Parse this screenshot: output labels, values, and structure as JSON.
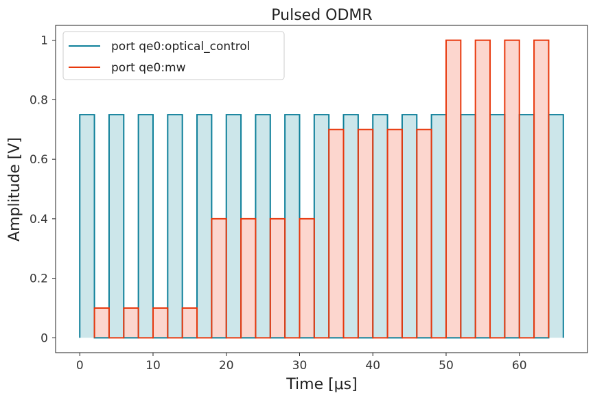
{
  "chart_data": {
    "type": "line",
    "title": "Pulsed ODMR",
    "xlabel": "Time [μs]",
    "ylabel": "Amplitude [V]",
    "xlim": [
      -3.3,
      69.3
    ],
    "ylim": [
      -0.05,
      1.05
    ],
    "xticks": [
      0,
      10,
      20,
      30,
      40,
      50,
      60
    ],
    "xtick_labels": [
      "0",
      "10",
      "20",
      "30",
      "40",
      "50",
      "60"
    ],
    "yticks": [
      0,
      0.2,
      0.4,
      0.6,
      0.8,
      1
    ],
    "ytick_labels": [
      "0",
      "0.2",
      "0.4",
      "0.6",
      "0.8",
      "1"
    ],
    "grid": false,
    "legend_position": "top-left",
    "series": [
      {
        "name": "port qe0:optical_control",
        "color": "#0d7f99",
        "fill": "#cce6ea",
        "pulses": [
          {
            "start": 0,
            "end": 2,
            "amp": 0.75
          },
          {
            "start": 4,
            "end": 6,
            "amp": 0.75
          },
          {
            "start": 8,
            "end": 10,
            "amp": 0.75
          },
          {
            "start": 12,
            "end": 14,
            "amp": 0.75
          },
          {
            "start": 16,
            "end": 18,
            "amp": 0.75
          },
          {
            "start": 20,
            "end": 22,
            "amp": 0.75
          },
          {
            "start": 24,
            "end": 26,
            "amp": 0.75
          },
          {
            "start": 28,
            "end": 30,
            "amp": 0.75
          },
          {
            "start": 32,
            "end": 34,
            "amp": 0.75
          },
          {
            "start": 36,
            "end": 38,
            "amp": 0.75
          },
          {
            "start": 40,
            "end": 42,
            "amp": 0.75
          },
          {
            "start": 44,
            "end": 46,
            "amp": 0.75
          },
          {
            "start": 48,
            "end": 50,
            "amp": 0.75
          },
          {
            "start": 52,
            "end": 54,
            "amp": 0.75
          },
          {
            "start": 56,
            "end": 58,
            "amp": 0.75
          },
          {
            "start": 60,
            "end": 62,
            "amp": 0.75
          },
          {
            "start": 64,
            "end": 66,
            "amp": 0.75
          }
        ]
      },
      {
        "name": "port qe0:mw",
        "color": "#e8380d",
        "fill": "#fcd6ce",
        "pulses": [
          {
            "start": 2,
            "end": 4,
            "amp": 0.1
          },
          {
            "start": 6,
            "end": 8,
            "amp": 0.1
          },
          {
            "start": 10,
            "end": 12,
            "amp": 0.1
          },
          {
            "start": 14,
            "end": 16,
            "amp": 0.1
          },
          {
            "start": 18,
            "end": 20,
            "amp": 0.4
          },
          {
            "start": 22,
            "end": 24,
            "amp": 0.4
          },
          {
            "start": 26,
            "end": 28,
            "amp": 0.4
          },
          {
            "start": 30,
            "end": 32,
            "amp": 0.4
          },
          {
            "start": 34,
            "end": 36,
            "amp": 0.7
          },
          {
            "start": 38,
            "end": 40,
            "amp": 0.7
          },
          {
            "start": 42,
            "end": 44,
            "amp": 0.7
          },
          {
            "start": 46,
            "end": 48,
            "amp": 0.7
          },
          {
            "start": 50,
            "end": 52,
            "amp": 1.0
          },
          {
            "start": 54,
            "end": 56,
            "amp": 1.0
          },
          {
            "start": 58,
            "end": 60,
            "amp": 1.0
          },
          {
            "start": 62,
            "end": 64,
            "amp": 1.0
          }
        ]
      }
    ]
  }
}
